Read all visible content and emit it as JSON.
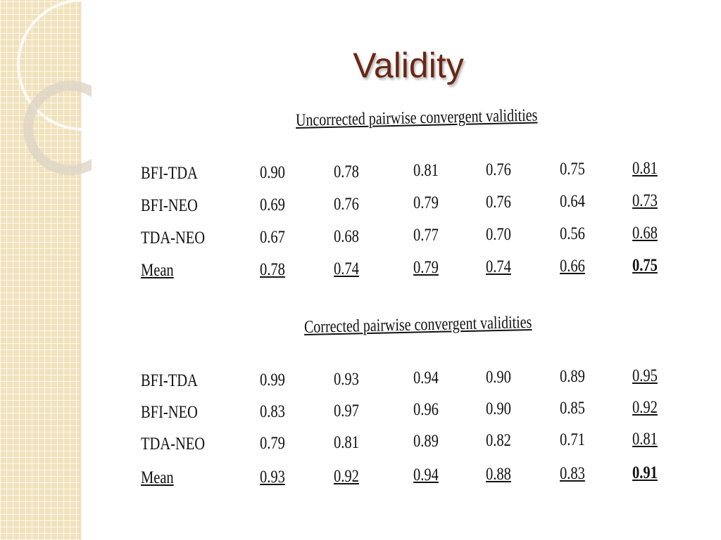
{
  "title": "Validity",
  "tables": [
    {
      "heading": "Uncorrected pairwise convergent validities",
      "rows": [
        [
          "BFI-TDA",
          "0.90",
          "0.78",
          "0.81",
          "0.76",
          "0.75",
          "0.81"
        ],
        [
          "BFI-NEO",
          "0.69",
          "0.76",
          "0.79",
          "0.76",
          "0.64",
          "0.73"
        ],
        [
          "TDA-NEO",
          "0.67",
          "0.68",
          "0.77",
          "0.70",
          "0.56",
          "0.68"
        ],
        [
          "Mean",
          "0.78",
          "0.74",
          "0.79",
          "0.74",
          "0.66",
          "0.75"
        ]
      ]
    },
    {
      "heading": "Corrected pairwise convergent validities",
      "rows": [
        [
          "BFI-TDA",
          "0.99",
          "0.93",
          "0.94",
          "0.90",
          "0.89",
          "0.95"
        ],
        [
          "BFI-NEO",
          "0.83",
          "0.97",
          "0.96",
          "0.90",
          "0.85",
          "0.92"
        ],
        [
          "TDA-NEO",
          "0.79",
          "0.81",
          "0.89",
          "0.82",
          "0.71",
          "0.81"
        ],
        [
          "Mean",
          "0.93",
          "0.92",
          "0.94",
          "0.88",
          "0.83",
          "0.91"
        ]
      ]
    }
  ]
}
